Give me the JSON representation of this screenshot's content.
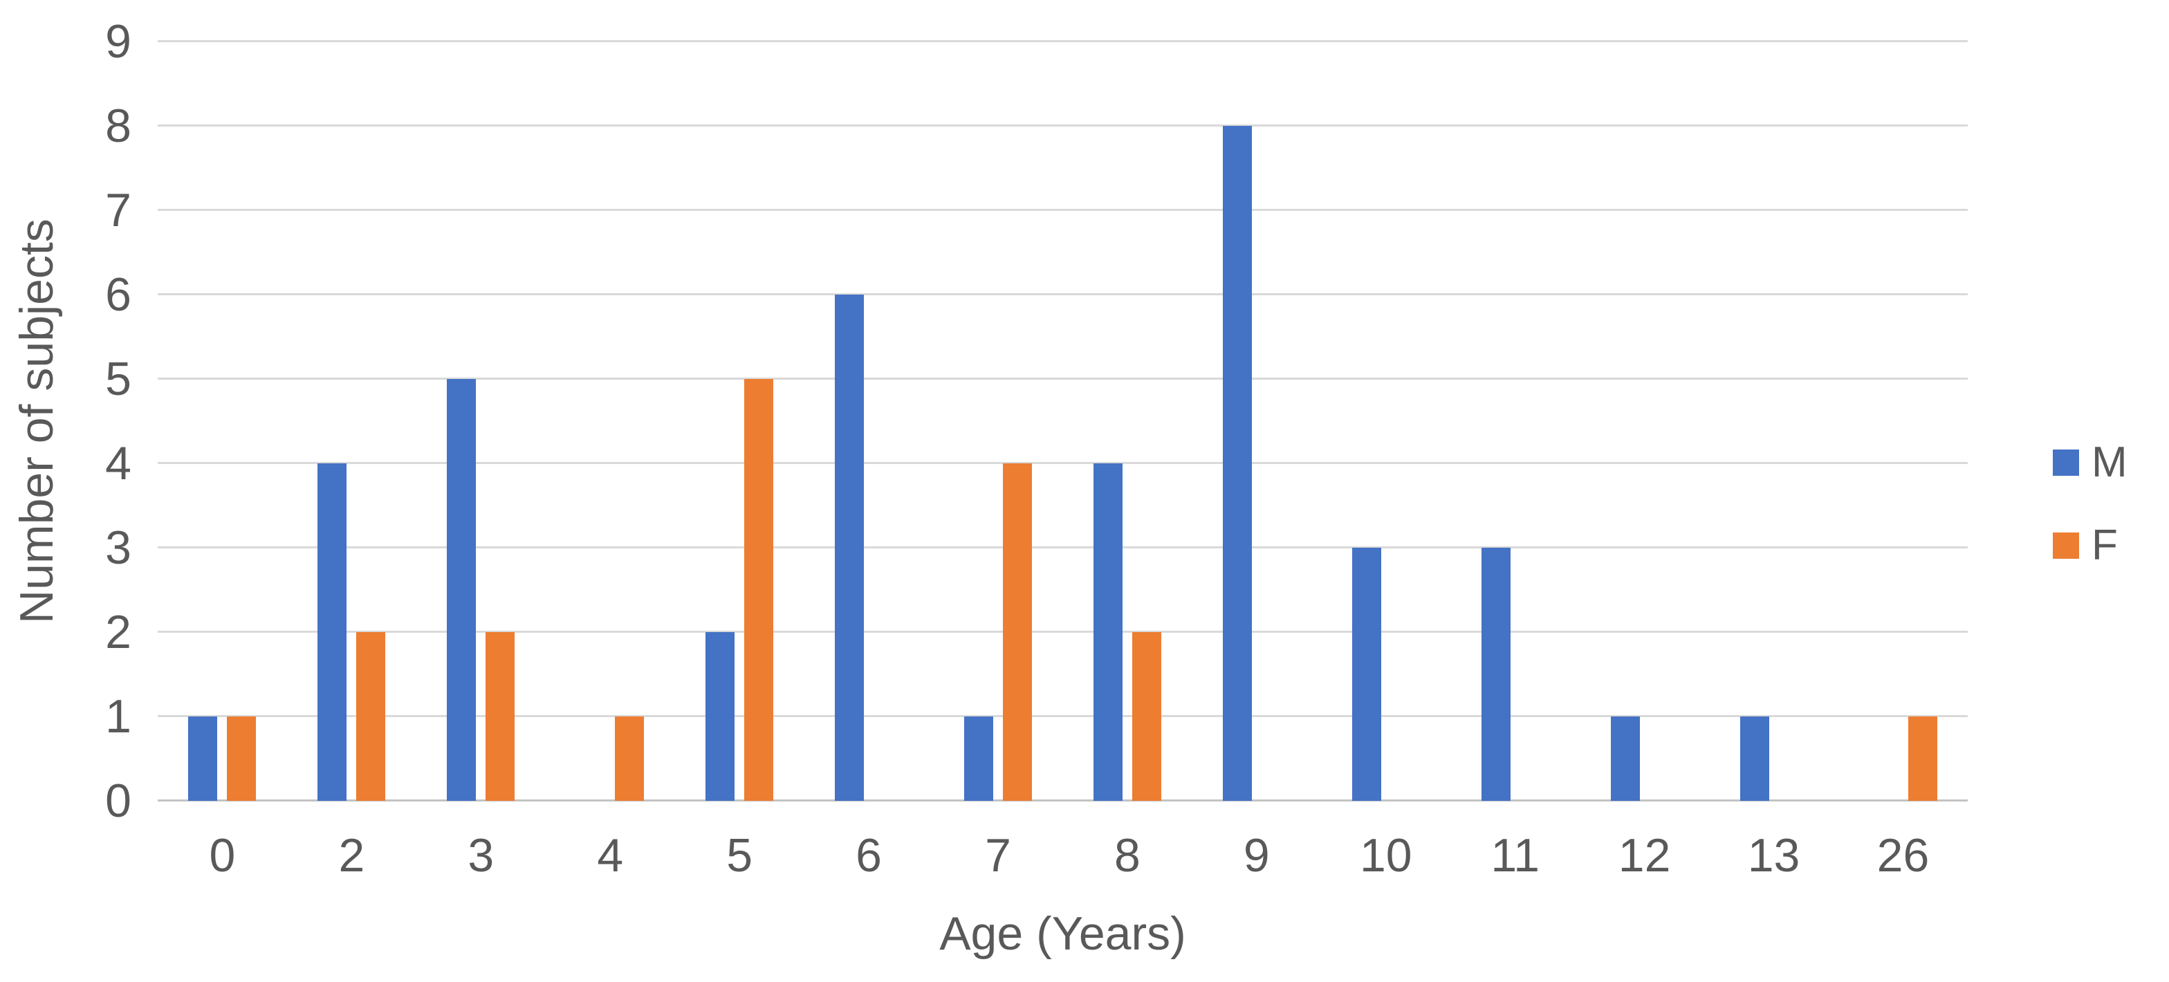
{
  "chart_data": {
    "type": "bar",
    "title": "",
    "xlabel": "Age (Years)",
    "ylabel": "Number of subjects",
    "categories": [
      "0",
      "2",
      "3",
      "4",
      "5",
      "6",
      "7",
      "8",
      "9",
      "10",
      "11",
      "12",
      "13",
      "26"
    ],
    "series": [
      {
        "name": "M",
        "color": "#4472C4",
        "values": [
          1,
          4,
          5,
          0,
          2,
          6,
          1,
          4,
          8,
          3,
          3,
          1,
          1,
          0
        ]
      },
      {
        "name": "F",
        "color": "#ED7D31",
        "values": [
          1,
          2,
          2,
          1,
          5,
          0,
          4,
          2,
          0,
          0,
          0,
          0,
          0,
          1
        ]
      }
    ],
    "ylim": [
      0,
      9
    ],
    "ytick_step": 1,
    "yticks": [
      0,
      1,
      2,
      3,
      4,
      5,
      6,
      7,
      8,
      9
    ],
    "grid": true,
    "legend_position": "right"
  },
  "style": {
    "background": "#FFFFFF",
    "text_color": "#595959",
    "gridline_color": "#D9D9D9",
    "axis_line_color": "#C3C3C3"
  }
}
